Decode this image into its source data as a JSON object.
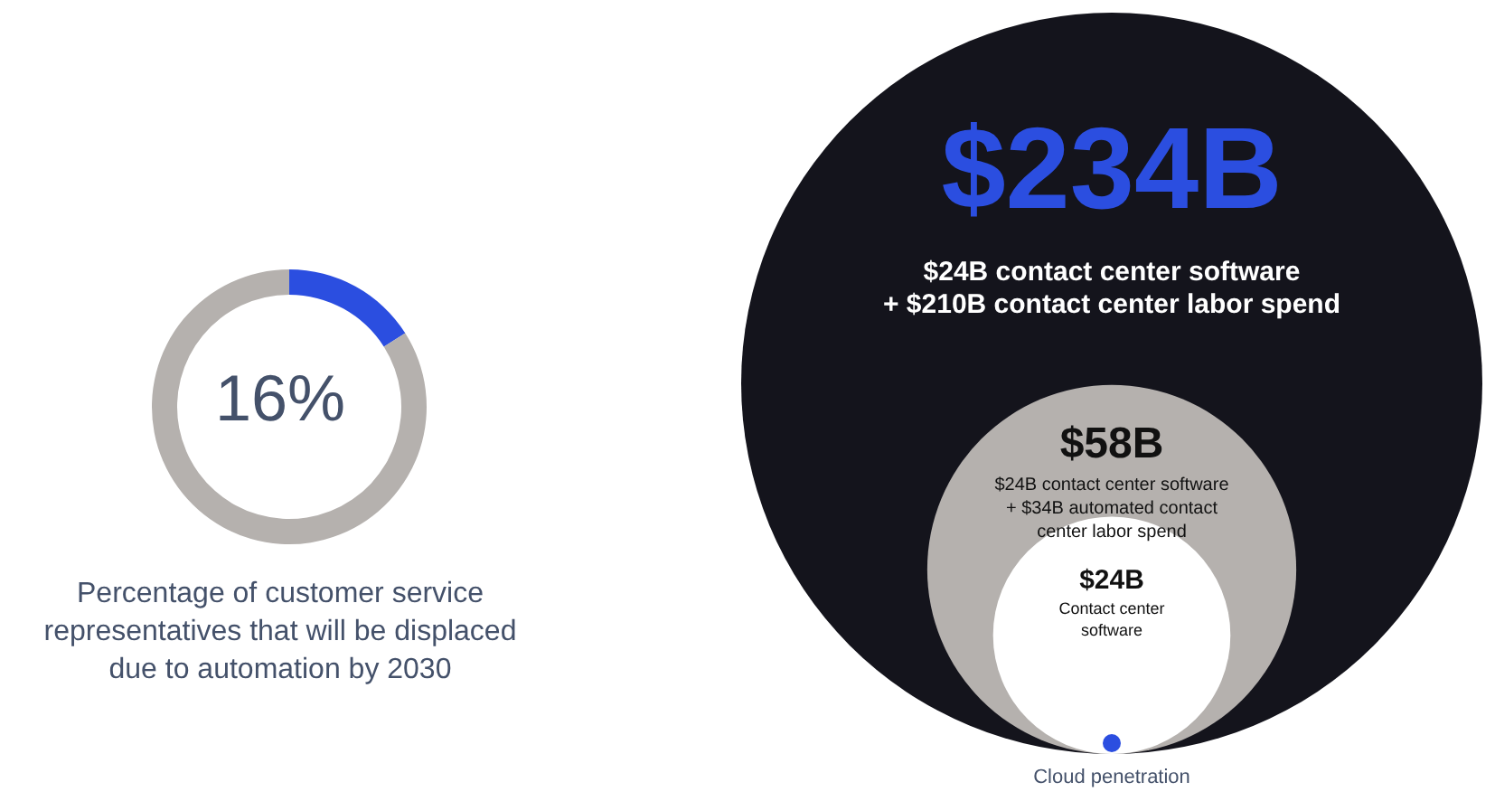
{
  "chart_data": [
    {
      "type": "donut",
      "categories": [
        null,
        null
      ],
      "values": [
        16,
        84
      ],
      "colors": [
        "#2b4ee0",
        "#b5b1ae"
      ],
      "annotations": [
        "16%",
        "Percentage of customer service representatives that will be displaced due to automation by 2030"
      ]
    },
    {
      "type": "other",
      "categories": [
        "$24B contact center software\n+ $210B contact center labor spend",
        "$24B contact center software\n+ $34B automated contact\ncenter labor spend",
        "Contact center\nsoftware"
      ],
      "values": [
        234,
        58,
        24
      ],
      "value_labels": [
        "$234B",
        "$58B",
        "$24B"
      ],
      "colors": [
        "#14141c",
        "#b5b1ae",
        "#ffffff"
      ],
      "annotations": [
        "Cloud penetration"
      ]
    }
  ]
}
